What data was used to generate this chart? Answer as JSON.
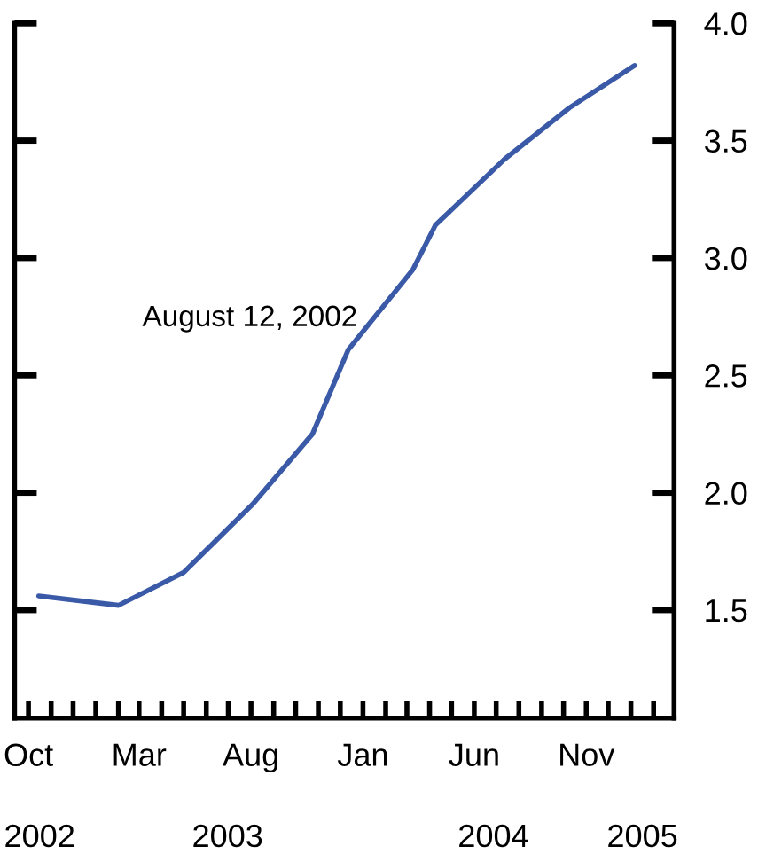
{
  "chart_data": {
    "type": "line",
    "x": [
      "2002-10-15",
      "2003-02-01",
      "2003-05-01",
      "2003-08-03",
      "2003-10-24",
      "2003-12-12",
      "2004-03-09",
      "2004-04-09",
      "2004-07-12",
      "2004-10-09",
      "2005-01-06"
    ],
    "series": [
      {
        "name": "August 12, 2002",
        "color": "#3a5aa8",
        "values": [
          1.56,
          1.52,
          1.66,
          1.95,
          2.25,
          2.61,
          2.95,
          3.14,
          3.42,
          3.64,
          3.82
        ]
      }
    ],
    "xlim": [
      "2002-09-12",
      "2005-03-01"
    ],
    "xticks": [
      {
        "value": "2002-10-01",
        "label": "Oct"
      },
      {
        "value": "2003-03-01",
        "label": "Mar"
      },
      {
        "value": "2003-08-01",
        "label": "Aug"
      },
      {
        "value": "2004-01-01",
        "label": "Jan"
      },
      {
        "value": "2004-06-01",
        "label": "Jun"
      },
      {
        "value": "2004-11-01",
        "label": "Nov"
      }
    ],
    "ylim": [
      1.04,
      4.0
    ],
    "yticks": [
      {
        "value": 1.5,
        "label": "1.5"
      },
      {
        "value": 2.0,
        "label": "2.0"
      },
      {
        "value": 2.5,
        "label": "2.5"
      },
      {
        "value": 3.0,
        "label": "3.0"
      },
      {
        "value": 3.5,
        "label": "3.5"
      },
      {
        "value": 4.0,
        "label": "4.0"
      }
    ],
    "annotations": [
      "2002",
      "2003",
      "2004",
      "2005"
    ],
    "grid": false,
    "legend": false,
    "marker": "none",
    "line_style": "solid"
  }
}
